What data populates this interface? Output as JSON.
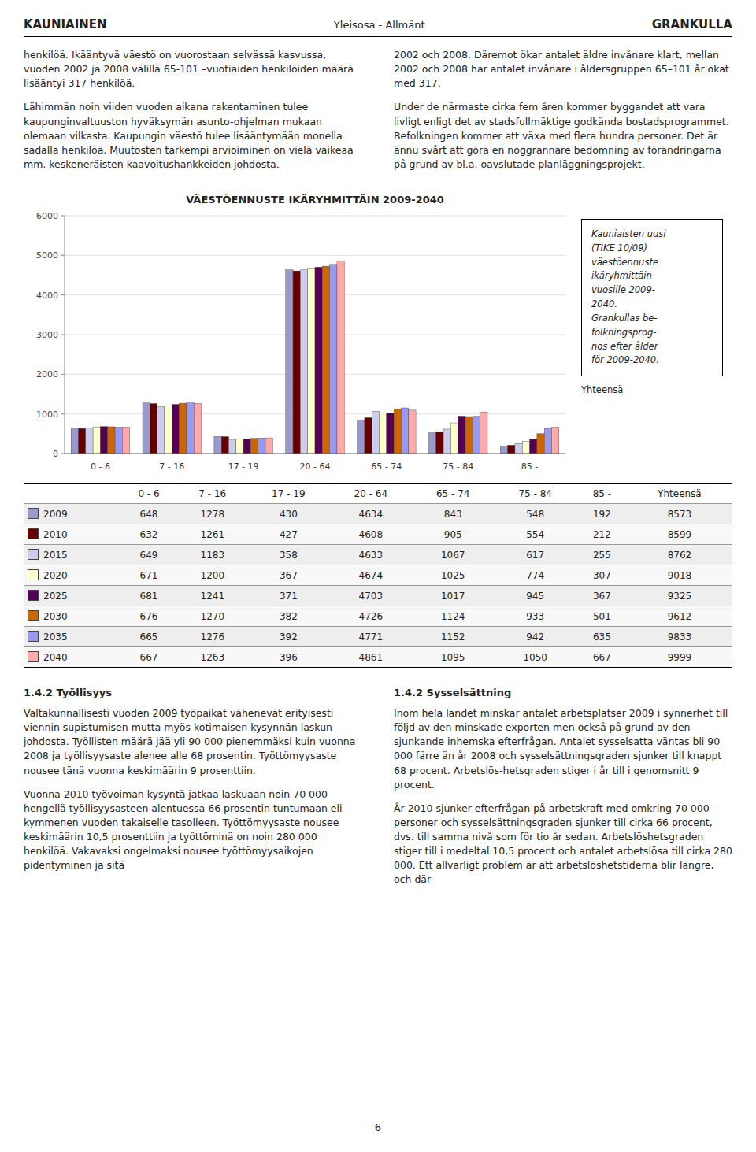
{
  "page": {
    "header": [
      "KAUNIAINEN",
      "Yleisosa - Allmänt",
      "GRANKULLA"
    ],
    "top_left": [
      "henkilöä. Ikääntyvä väestö on vuorostaan selvässä kasvussa, vuoden 2002 ja 2008 välillä 65-101 –vuotiaiden henkilöiden määrä lisääntyi 317 henkilöä.",
      "Lähimmän noin viiden vuoden aikana rakentaminen tulee kaupunginvaltuuston hyväksymän asunto-ohjelman mukaan olemaan vilkasta. Kaupungin väestö tulee lisääntymään monella sadalla henkilöä. Muutosten tarkempi arvioiminen on vielä vaikeaa mm. keskeneräisten kaavoitushankkeiden johdosta."
    ],
    "top_right": [
      "2002 och 2008. Däremot ökar antalet äldre invånare klart, mellan 2002 och 2008 har antalet invånare i åldersgruppen 65–101 år ökat med 317.",
      "Under de närmaste cirka fem åren kommer byggandet att vara livligt enligt det av stadsfullmäktige godkända bostadsprogrammet. Befolkningen kommer att växa med flera hundra personer. Det är ännu svårt att göra en noggrannare bedömning av förändringarna på grund av bl.a. oavslutade planläggningsprojekt."
    ],
    "section_left": {
      "title": "1.4.2 Työllisyys",
      "paragraphs": [
        "Valtakunnallisesti vuoden 2009 työpaikat vähenevät erityisesti viennin supistumisen mutta myös kotimaisen kysynnän laskun johdosta. Työllisten määrä jää yli 90 000 pienemmäksi kuin vuonna 2008 ja työllisyysaste alenee alle 68 prosentin. Työttömyysaste nousee tänä vuonna keskimäärin 9 prosenttiin.",
        "Vuonna 2010 työvoiman kysyntä jatkaa laskuaan noin 70 000 hengellä työllisyysasteen alentuessa 66 prosentin tuntumaan eli kymmenen vuoden takaiselle tasolleen. Työttömyysaste nousee keskimäärin 10,5 prosenttiin ja työttöminä on noin 280 000 henkilöä. Vakavaksi ongelmaksi nousee työttömyysaikojen pidentyminen ja sitä"
      ]
    },
    "section_right": {
      "title": "1.4.2 Sysselsättning",
      "paragraphs": [
        "Inom hela landet minskar antalet arbetsplatser 2009 i synnerhet till följd av den minskade exporten men också på grund av den sjunkande inhemska efterfrågan. Antalet sysselsatta väntas bli 90 000 färre än år 2008 och sysselsättningsgraden sjunker till knappt 68 procent. Arbetslös-hetsgraden stiger i år till i genomsnitt 9 procent.",
        "År 2010 sjunker efterfrågan på arbetskraft med omkring 70 000 personer och sysselsättningsgraden sjunker till cirka 66 procent, dvs. till samma nivå som för tio år sedan. Arbetslöshetsgraden stiger till i medeltal 10,5 procent och antalet arbetslösa till cirka 280 000. Ett allvarligt problem är att arbetslöshetstiderna blir längre, och där-"
      ]
    },
    "page_number": "6"
  },
  "chart_data": {
    "type": "bar",
    "title": "VÄESTÖENNUSTE IKÄRYHMITTÄIN 2009-2040",
    "categories": [
      "0 - 6",
      "7 - 16",
      "17 - 19",
      "20 - 64",
      "65 - 74",
      "75 - 84",
      "85 -"
    ],
    "series": [
      {
        "name": "2009",
        "color": "#9999cc",
        "values": [
          648,
          1278,
          430,
          4634,
          843,
          548,
          192
        ]
      },
      {
        "name": "2010",
        "color": "#660000",
        "values": [
          632,
          1261,
          427,
          4608,
          905,
          554,
          212
        ]
      },
      {
        "name": "2015",
        "color": "#ccccee",
        "values": [
          649,
          1183,
          358,
          4633,
          1067,
          617,
          255
        ]
      },
      {
        "name": "2020",
        "color": "#ffffcc",
        "values": [
          671,
          1200,
          367,
          4674,
          1025,
          774,
          307
        ]
      },
      {
        "name": "2025",
        "color": "#550055",
        "values": [
          681,
          1241,
          371,
          4703,
          1017,
          945,
          367
        ]
      },
      {
        "name": "2030",
        "color": "#cc6600",
        "values": [
          676,
          1270,
          382,
          4726,
          1124,
          933,
          501
        ]
      },
      {
        "name": "2035",
        "color": "#9999ee",
        "values": [
          665,
          1276,
          392,
          4771,
          1152,
          942,
          635
        ]
      },
      {
        "name": "2040",
        "color": "#ffaaaa",
        "values": [
          667,
          1263,
          396,
          4861,
          1095,
          1050,
          667
        ]
      }
    ],
    "ylim": [
      0,
      6000
    ],
    "yticks": [
      0,
      1000,
      2000,
      3000,
      4000,
      5000,
      6000
    ],
    "grid": true,
    "annotation": "Kauniaisten uusi\n(TIKE 10/09)\nväestöennuste\nikäryhmittäin\nvuosille 2009-\n2040.\nGrankullas be-\nfolkningsprog-\nnos efter ålder\nför 2009-2040."
  },
  "table": {
    "total_label": "Yhteensä",
    "totals": [
      8573,
      8599,
      8762,
      9018,
      9325,
      9612,
      9833,
      9999
    ]
  }
}
